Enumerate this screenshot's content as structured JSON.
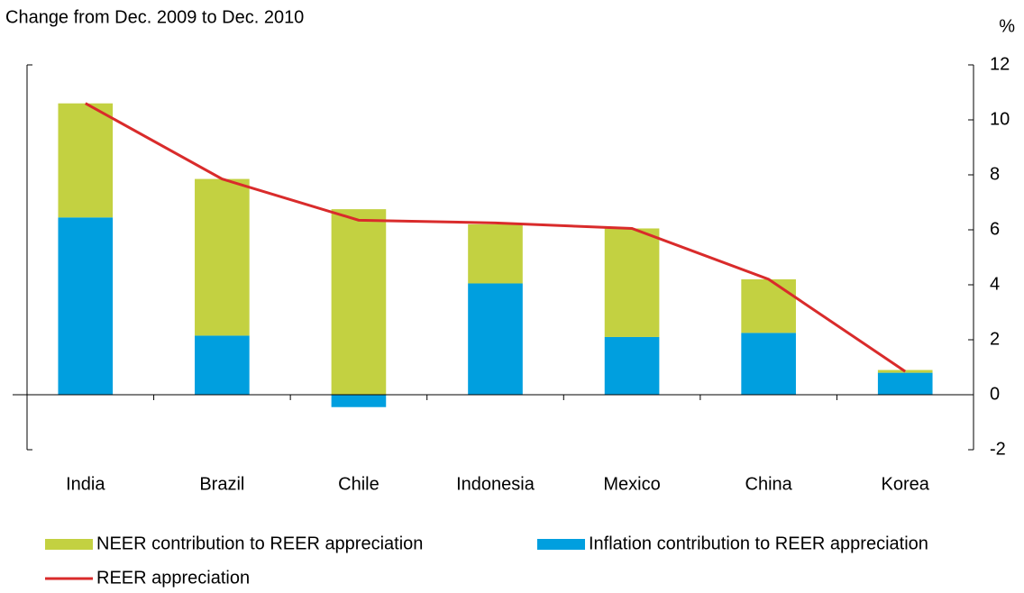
{
  "chart_data": {
    "type": "bar",
    "stacked": true,
    "subtitle": "Change from Dec. 2009 to Dec. 2010",
    "y_axis_label": "%",
    "categories": [
      "India",
      "Brazil",
      "Chile",
      "Indonesia",
      "Mexico",
      "China",
      "Korea"
    ],
    "series": [
      {
        "name": "NEER contribution to REER appreciation",
        "type": "bar",
        "color": "#c3d141",
        "values": [
          4.15,
          5.7,
          6.75,
          2.15,
          3.95,
          1.95,
          0.1
        ]
      },
      {
        "name": "Inflation contribution to REER appreciation",
        "type": "bar",
        "color": "#009fdf",
        "values": [
          6.45,
          2.15,
          -0.45,
          4.05,
          2.1,
          2.25,
          0.8
        ]
      },
      {
        "name": "REER appreciation",
        "type": "line",
        "color": "#d92b2b",
        "values": [
          10.6,
          7.85,
          6.35,
          6.25,
          6.05,
          4.2,
          0.85
        ]
      }
    ],
    "ylim": [
      -2,
      12
    ],
    "yticks": [
      -2,
      0,
      2,
      4,
      6,
      8,
      10,
      12
    ],
    "grid": false
  }
}
